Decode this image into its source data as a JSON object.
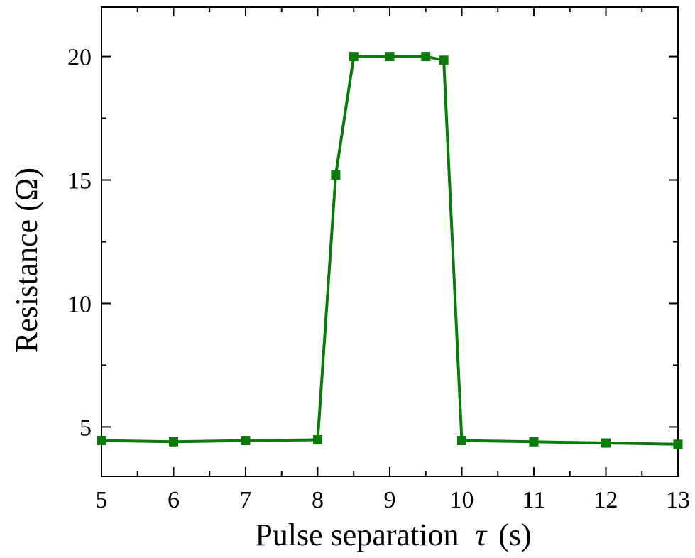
{
  "chart_data": {
    "type": "line",
    "title": "",
    "xlabel": "Pulse separation",
    "xlabel_symbol": "τ",
    "xlabel_unit": "(s)",
    "ylabel": "Resistance (Ω)",
    "xlim": [
      5,
      13
    ],
    "ylim": [
      3,
      22
    ],
    "x_ticks": [
      5,
      6,
      7,
      8,
      9,
      10,
      11,
      12,
      13
    ],
    "y_ticks": [
      5,
      10,
      15,
      20
    ],
    "grid": false,
    "legend": "none",
    "series": [
      {
        "color": "#0a7a0a",
        "marker": "square",
        "x": [
          5,
          6,
          7,
          8,
          8.25,
          8.5,
          9,
          9.5,
          9.75,
          10,
          11,
          12,
          13
        ],
        "y": [
          4.45,
          4.4,
          4.45,
          4.48,
          15.2,
          20.0,
          20.0,
          20.0,
          19.85,
          4.45,
          4.4,
          4.35,
          4.3
        ]
      }
    ]
  }
}
